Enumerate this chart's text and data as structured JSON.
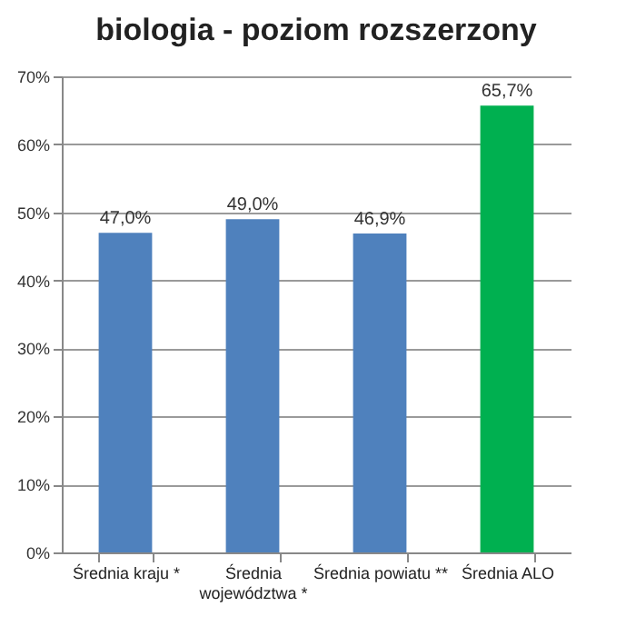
{
  "chart_data": {
    "type": "bar",
    "title": "biologia - poziom rozszerzony",
    "categories": [
      "Średnia kraju *",
      "Średnia województwa *",
      "Średnia powiatu **",
      "Średnia ALO"
    ],
    "values": [
      47.0,
      49.0,
      46.9,
      65.7
    ],
    "colors": [
      "#4f81bd",
      "#4f81bd",
      "#4f81bd",
      "#00b050"
    ],
    "value_labels": [
      "47,0%",
      "49,0%",
      "46,9%",
      "65,7%"
    ],
    "ylim": [
      0,
      70
    ],
    "yticks": [
      {
        "value": 0,
        "label": "0%"
      },
      {
        "value": 10,
        "label": "10%"
      },
      {
        "value": 20,
        "label": "20%"
      },
      {
        "value": 30,
        "label": "30%"
      },
      {
        "value": 40,
        "label": "40%"
      },
      {
        "value": 50,
        "label": "50%"
      },
      {
        "value": 60,
        "label": "60%"
      },
      {
        "value": 70,
        "label": "70%"
      }
    ],
    "grid": "y"
  }
}
